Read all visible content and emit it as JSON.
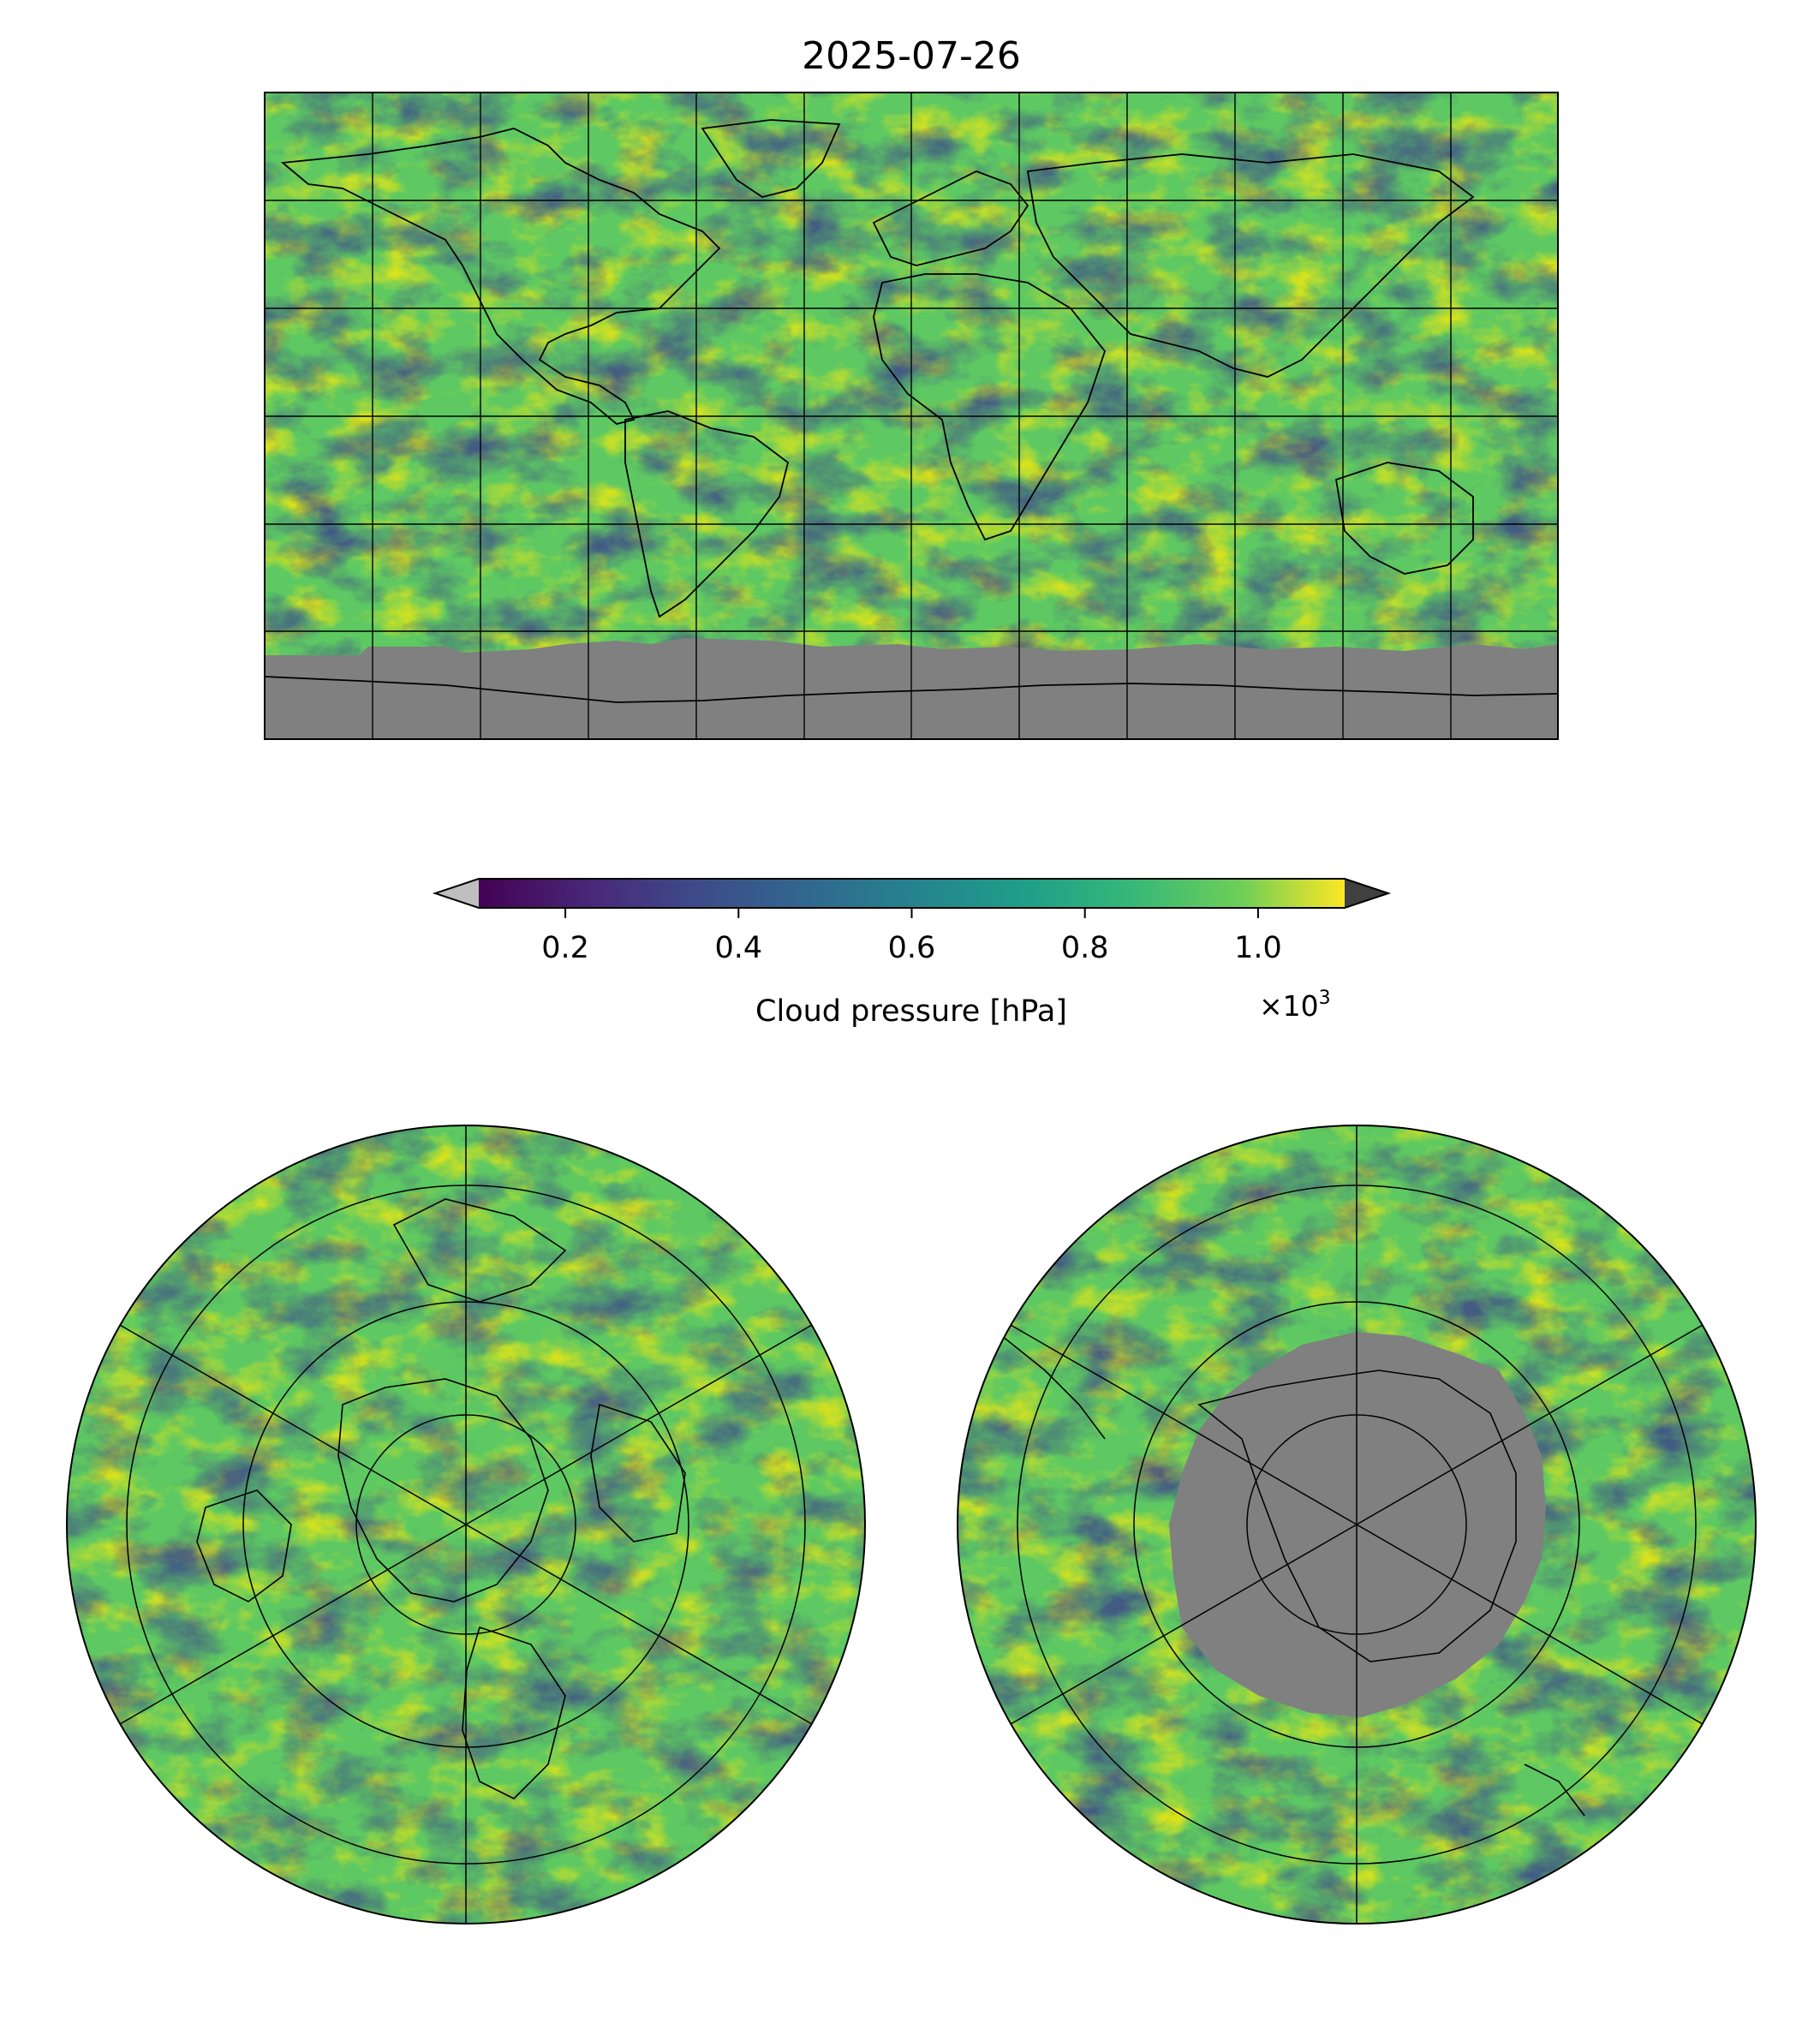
{
  "figure": {
    "title": "2025-07-26"
  },
  "colorbar": {
    "label": "Cloud pressure [hPa]",
    "ticks": [
      0.2,
      0.4,
      0.6,
      0.8,
      1.0
    ],
    "tick_labels": [
      "0.2",
      "0.4",
      "0.6",
      "0.8",
      "1.0"
    ],
    "range": [
      0.1,
      1.1
    ],
    "multiplier": "×10",
    "multiplier_exponent": "3",
    "colormap": "viridis",
    "under_color": "#bfbfbf",
    "over_color": "#404040",
    "colormap_stops": [
      "#440154",
      "#3b528b",
      "#21918c",
      "#5ec962",
      "#fde725"
    ]
  },
  "maps": {
    "land_mask_color": "#808080",
    "top": {
      "projection": "PlateCarree",
      "graticule_step_deg": 30
    },
    "north_polar": {
      "projection": "NorthPolarStereo"
    },
    "south_polar": {
      "projection": "SouthPolarStereo"
    }
  }
}
